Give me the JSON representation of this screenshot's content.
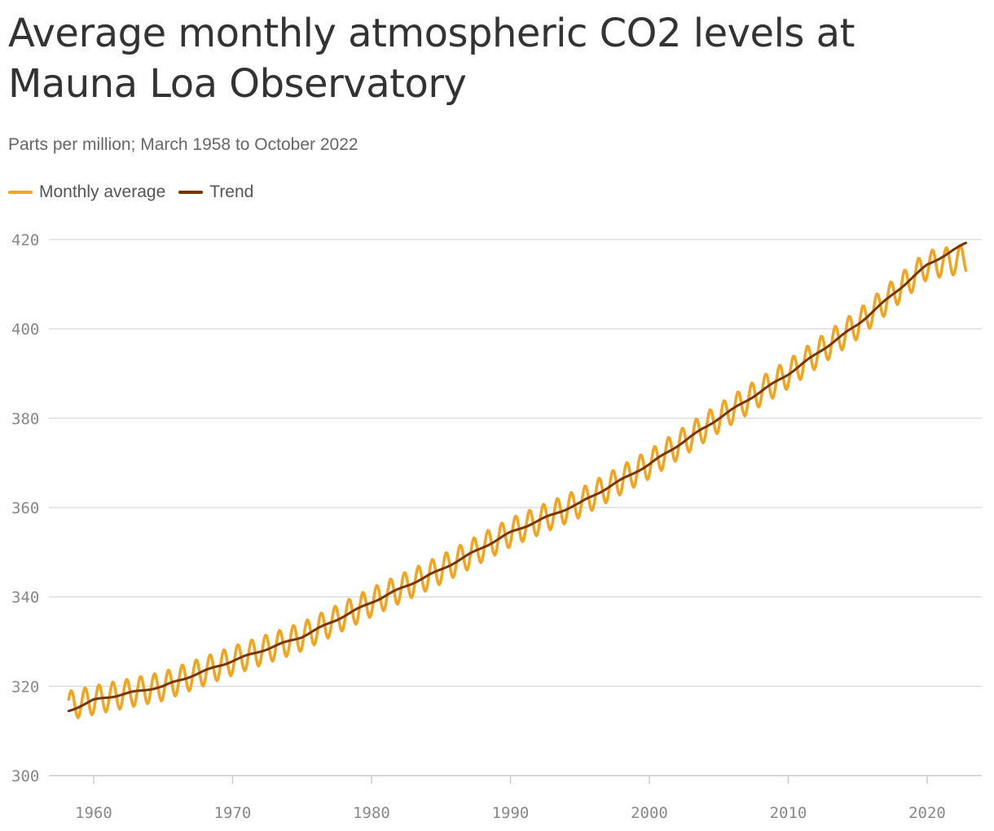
{
  "chart_data": {
    "type": "line",
    "title": "Average monthly atmospheric CO2 levels at Mauna Loa Observatory",
    "subtitle": "Parts per million; March 1958 to October 2022",
    "xlabel": "",
    "ylabel": "",
    "xlim": [
      1958.2,
      2022.8
    ],
    "ylim": [
      300,
      420
    ],
    "y_ticks": [
      "300",
      "320",
      "340",
      "360",
      "380",
      "400",
      "420"
    ],
    "x_ticks": [
      "1960",
      "1970",
      "1980",
      "1990",
      "2000",
      "2010",
      "2020"
    ],
    "grid": "horizontal",
    "legend_placement": "top-left",
    "seasonal_amplitude_ppm": 3.2,
    "series": [
      {
        "name": "Monthly average",
        "color": "#f5a31a",
        "kind": "monthly",
        "x": [
          1958.2,
          1960,
          1965,
          1970,
          1975,
          1980,
          1985,
          1990,
          1995,
          2000,
          2005,
          2010,
          2015,
          2020,
          2022.8
        ],
        "values": [
          315.7,
          316.9,
          320.0,
          325.7,
          331.1,
          338.8,
          346.1,
          354.4,
          361.0,
          369.7,
          380.0,
          389.9,
          401.0,
          414.3,
          415.7
        ]
      },
      {
        "name": "Trend",
        "color": "#7a3300",
        "kind": "trend",
        "x": [
          1958.2,
          1960,
          1965,
          1970,
          1975,
          1980,
          1985,
          1990,
          1995,
          2000,
          2005,
          2010,
          2015,
          2020,
          2022.8
        ],
        "values": [
          314.5,
          316.9,
          320.0,
          325.7,
          331.1,
          338.8,
          346.1,
          354.4,
          361.0,
          369.7,
          380.0,
          389.9,
          401.0,
          414.3,
          419.2
        ]
      }
    ]
  }
}
